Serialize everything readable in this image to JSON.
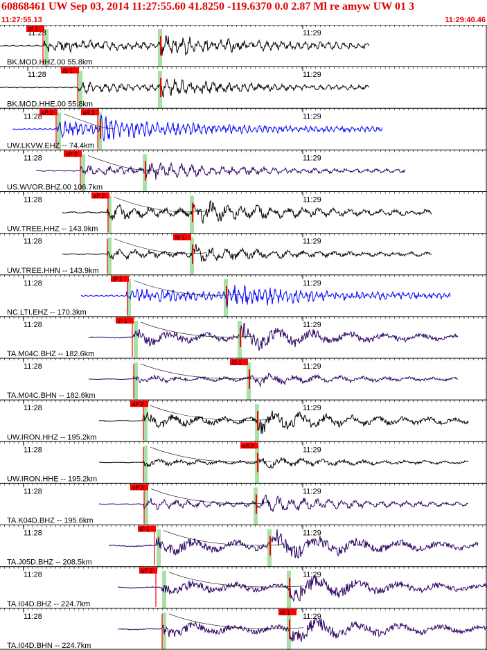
{
  "header": {
    "title": "60868461 UW Sep 03, 2014 11:27:55.60   41.8250 -119.6370  0.0 2.87 Ml re amyw UW 01   3",
    "start_time": "11:27:55.13",
    "end_time": "11:29:40.46"
  },
  "colors": {
    "header_text": "#e00000",
    "trace_dark": "#000000",
    "trace_blue": "#0000ff",
    "trace_purple": "#2a0060",
    "pick": "#ff0000",
    "green_band": "#a8e0a8"
  },
  "tick_labels": {
    "first": "11:28",
    "second": "11:29"
  },
  "traces": [
    {
      "label": "BK.MOD.HHZ.00 55.8km",
      "color": "dark",
      "picks": [
        "iP 1"
      ]
    },
    {
      "label": "BK.MOD.HHE.00 55.8km",
      "color": "dark",
      "picks": [
        "iS 1"
      ]
    },
    {
      "label": "UW.LKVW.EHZ -- 74.4km",
      "color": "blue",
      "picks": [
        "eP 2",
        "eS 2"
      ]
    },
    {
      "label": "US.WVOR.BHZ.00 106.7km",
      "color": "purple",
      "picks": [
        "eP 2"
      ]
    },
    {
      "label": "UW.TREE.HHZ -- 143.9km",
      "color": "dark",
      "picks": [
        "eP 2"
      ]
    },
    {
      "label": "UW.TREE.HHN -- 143.9km",
      "color": "dark",
      "picks": [
        "iS 1"
      ]
    },
    {
      "label": "NC.LTI.EHZ -- 170.3km",
      "color": "blue",
      "picks": [
        "iP 1"
      ]
    },
    {
      "label": "TA.M04C.BHZ -- 182.6km",
      "color": "purple",
      "picks": [
        "iP 1"
      ]
    },
    {
      "label": "TA.M04C.BHN -- 182.6km",
      "color": "purple",
      "picks": [
        "iS 1"
      ]
    },
    {
      "label": "UW.IRON.HHZ -- 195.2km",
      "color": "dark",
      "picks": [
        "eP 2"
      ]
    },
    {
      "label": "UW.IRON.HHE -- 195.2km",
      "color": "dark",
      "picks": [
        "eS 2"
      ]
    },
    {
      "label": "TA.K04D.BHZ -- 195.6km",
      "color": "purple",
      "picks": [
        "eP 2"
      ]
    },
    {
      "label": "TA.J05D.BHZ -- 208.5km",
      "color": "purple",
      "picks": [
        "iP 1"
      ]
    },
    {
      "label": "TA.I04D.BHZ -- 224.7km",
      "color": "purple",
      "picks": [
        "eP 2"
      ]
    },
    {
      "label": "TA.I04D.BHN -- 224.7km",
      "color": "purple",
      "picks": [
        "iS 1"
      ]
    }
  ]
}
